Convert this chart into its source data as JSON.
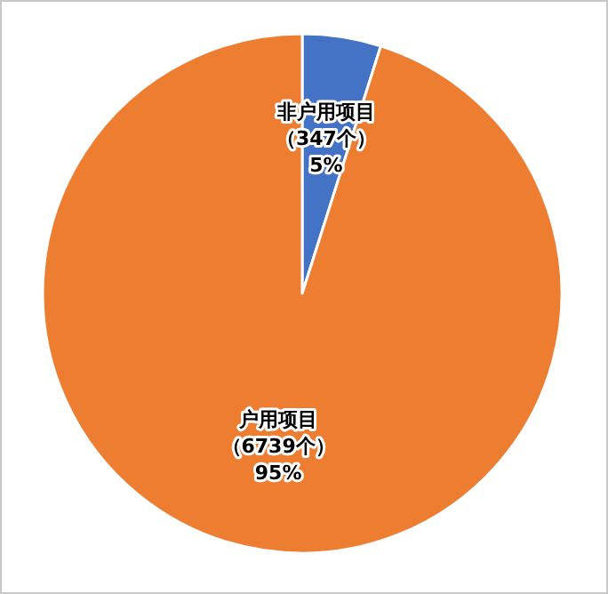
{
  "chart_data": {
    "type": "pie",
    "categories": [
      "非户用项目",
      "户用项目"
    ],
    "values": [
      347,
      6739
    ],
    "colors": [
      "#4472c4",
      "#ed7d31"
    ],
    "value_labels": [
      "（347个）\n5%",
      "（6739个）\n95%"
    ]
  }
}
